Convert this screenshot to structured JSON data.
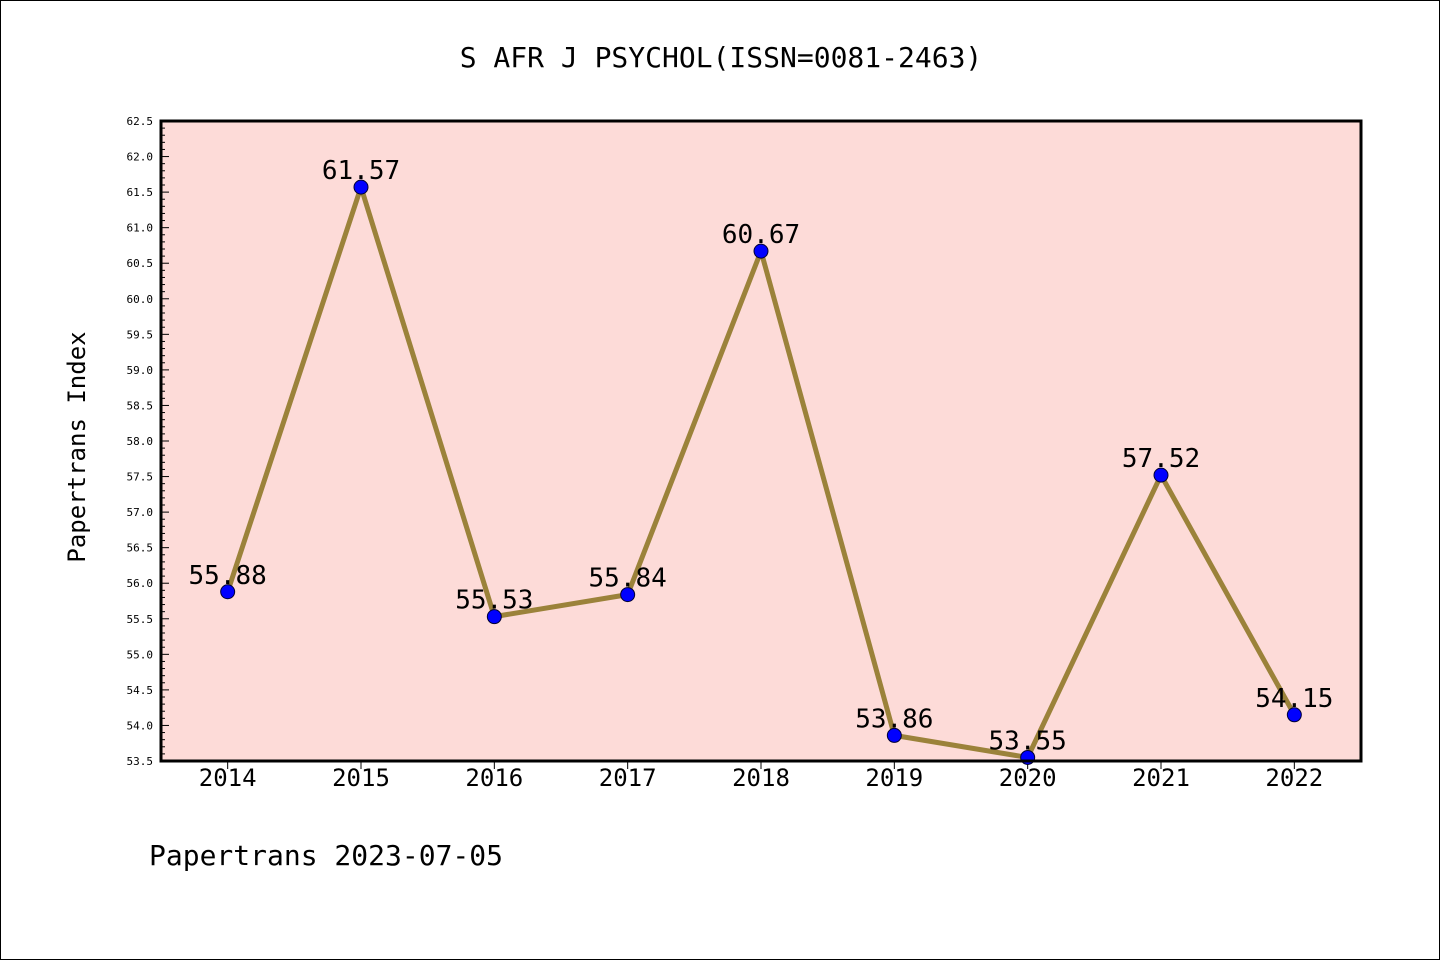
{
  "chart_data": {
    "type": "line",
    "title": "S AFR J PSYCHOL(ISSN=0081-2463)",
    "ylabel": "Papertrans Index",
    "xlabel": "",
    "footer": "Papertrans 2023-07-05",
    "categories": [
      "2014",
      "2015",
      "2016",
      "2017",
      "2018",
      "2019",
      "2020",
      "2021",
      "2022"
    ],
    "series": [
      {
        "values": [
          55.88,
          61.57,
          55.53,
          55.84,
          60.67,
          53.86,
          53.55,
          57.52,
          54.15
        ],
        "labels": [
          "55.88",
          "61.57",
          "55.53",
          "55.84",
          "60.67",
          "53.86",
          "53.55",
          "57.52",
          "54.15"
        ]
      }
    ],
    "ylim": [
      53.5,
      62.5
    ],
    "yticks": [
      "53.5",
      "54.0",
      "54.5",
      "55.0",
      "55.5",
      "56.0",
      "56.5",
      "57.0",
      "57.5",
      "58.0",
      "58.5",
      "59.0",
      "59.5",
      "60.0",
      "60.5",
      "61.0",
      "61.5",
      "62.0",
      "62.5"
    ],
    "grid": false,
    "colors": {
      "plot_background": "#fddbd8",
      "line": "#9b823a",
      "marker": "#0000ff"
    }
  }
}
